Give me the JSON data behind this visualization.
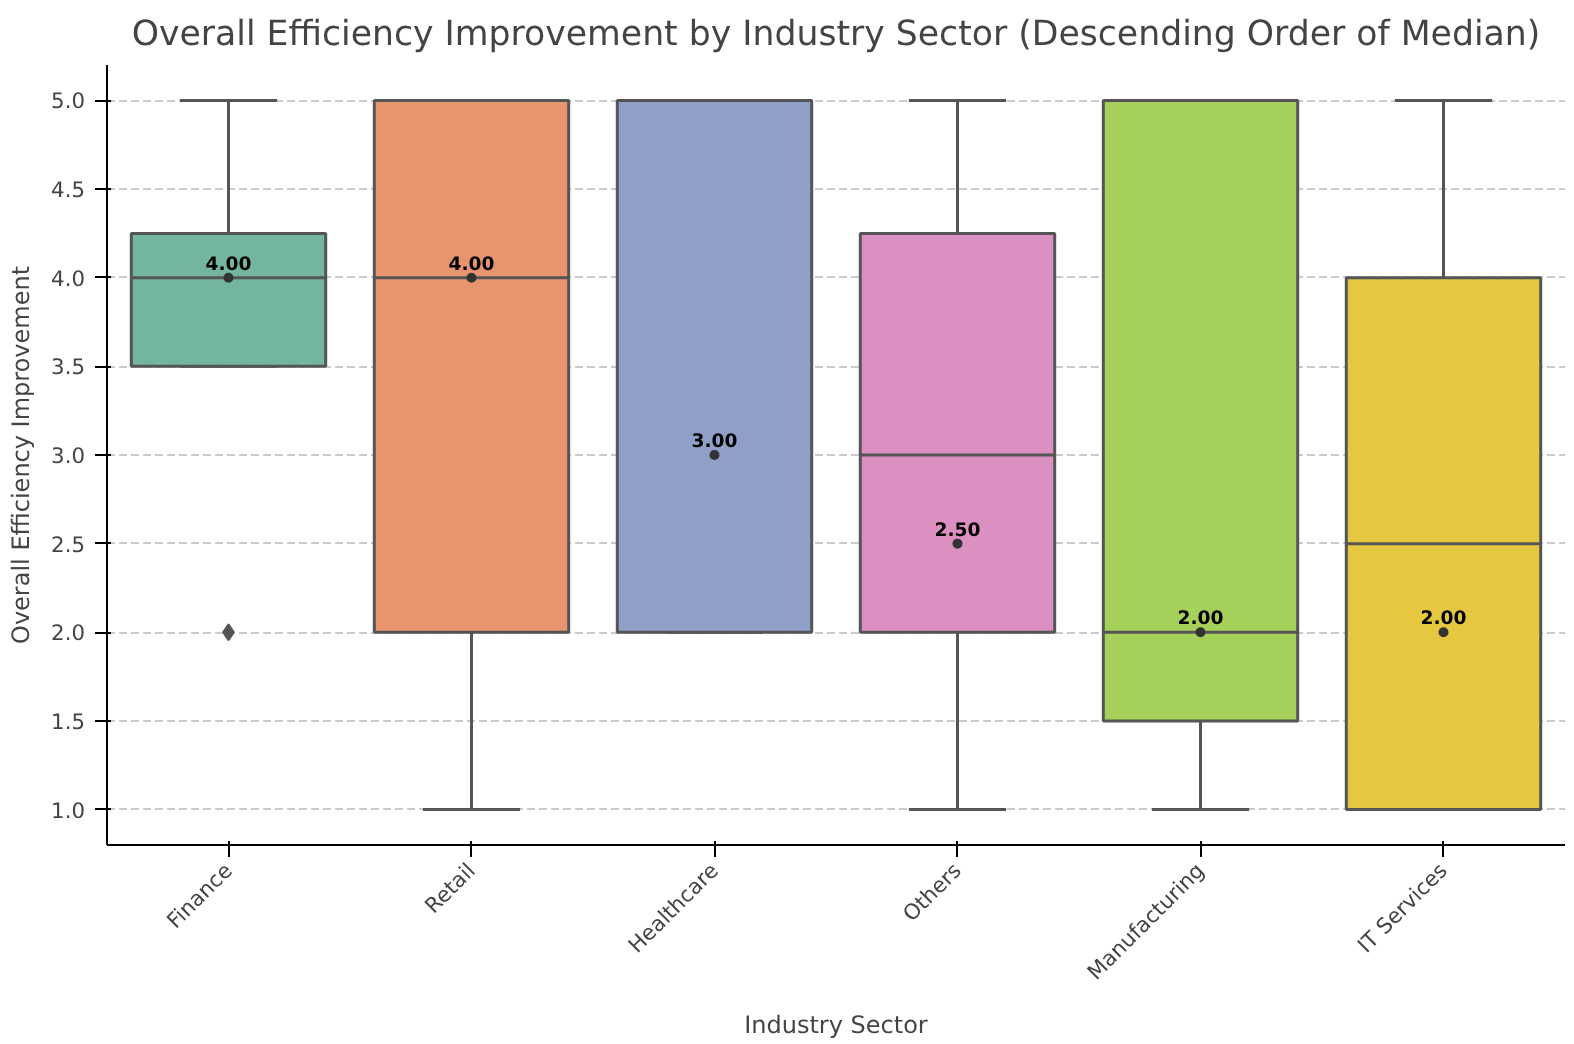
{
  "chart_data": {
    "type": "box",
    "title": "Overall Efficiency Improvement by Industry Sector (Descending Order of Median)",
    "xlabel": "Industry Sector",
    "ylabel": "Overall Efficiency Improvement",
    "categories": [
      "Finance",
      "Retail",
      "Healthcare",
      "Others",
      "Manufacturing",
      "IT Services"
    ],
    "colors": [
      "#72b6a1",
      "#e8956f",
      "#8f9fc7",
      "#dc8fc1",
      "#a5d15a",
      "#e5c740"
    ],
    "boxes": [
      {
        "low": 3.5,
        "q1": 3.5,
        "median": 4.0,
        "q3": 4.25,
        "high": 5.0,
        "mean": 4.0,
        "outliers": [
          2.0
        ]
      },
      {
        "low": 1.0,
        "q1": 2.0,
        "median": 4.0,
        "q3": 5.0,
        "high": 5.0,
        "mean": 4.0
      },
      {
        "low": 2.0,
        "q1": 2.0,
        "median": 5.0,
        "q3": 5.0,
        "high": 5.0,
        "mean": 3.0
      },
      {
        "low": 1.0,
        "q1": 2.0,
        "median": 3.0,
        "q3": 4.25,
        "high": 5.0,
        "mean": 2.5
      },
      {
        "low": 1.0,
        "q1": 1.5,
        "median": 2.0,
        "q3": 5.0,
        "high": 5.0,
        "mean": 2.0
      },
      {
        "low": 1.0,
        "q1": 1.0,
        "median": 2.5,
        "q3": 4.0,
        "high": 5.0,
        "mean": 2.0
      }
    ],
    "ylim": [
      0.8,
      5.2
    ],
    "yticks": [
      {
        "value": 1.0,
        "label": "1.0"
      },
      {
        "value": 1.5,
        "label": "1.5"
      },
      {
        "value": 2.0,
        "label": "2.0"
      },
      {
        "value": 2.5,
        "label": "2.5"
      },
      {
        "value": 3.0,
        "label": "3.0"
      },
      {
        "value": 3.5,
        "label": "3.5"
      },
      {
        "value": 4.0,
        "label": "4.0"
      },
      {
        "value": 4.5,
        "label": "4.5"
      },
      {
        "value": 5.0,
        "label": "5.0"
      }
    ],
    "grid": "y",
    "annotations": [
      "4.00",
      "4.00",
      "3.00",
      "2.50",
      "2.00",
      "2.00"
    ]
  }
}
